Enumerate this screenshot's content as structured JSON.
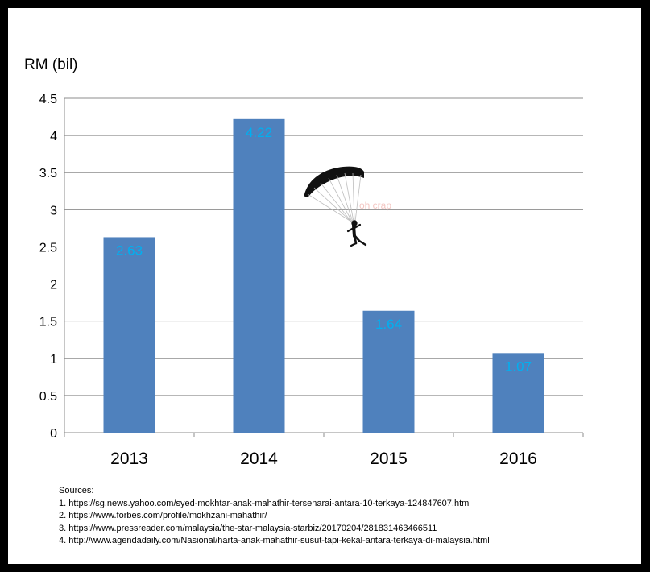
{
  "chart_data": {
    "type": "bar",
    "categories": [
      "2013",
      "2014",
      "2015",
      "2016"
    ],
    "values": [
      2.63,
      4.22,
      1.64,
      1.07
    ],
    "data_labels": [
      "2.63",
      "4.22",
      "1.64",
      "1.07"
    ],
    "title": "",
    "xlabel": "",
    "ylabel": "RM (bil)",
    "ylim": [
      0,
      4.5
    ],
    "yticks": [
      0,
      0.5,
      1,
      1.5,
      2,
      2.5,
      3,
      3.5,
      4,
      4.5
    ],
    "ytick_labels": [
      "0",
      "0.5",
      "1",
      "1.5",
      "2",
      "2.5",
      "3",
      "3.5",
      "4",
      "4.5"
    ],
    "grid": true,
    "bar_color": "#4F81BD",
    "label_color": "#00B0F0"
  },
  "annotation": {
    "text": "oh crap",
    "icon": "parachutist-icon",
    "color": "#F4C7C3"
  },
  "sources": {
    "heading": "Sources:",
    "items": [
      "1. https://sg.news.yahoo.com/syed-mokhtar-anak-mahathir-tersenarai-antara-10-terkaya-124847607.html",
      "2. https://www.forbes.com/profile/mokhzani-mahathir/",
      "3. https://www.pressreader.com/malaysia/the-star-malaysia-starbiz/20170204/281831463466511",
      "4. http://www.agendadaily.com/Nasional/harta-anak-mahathir-susut-tapi-kekal-antara-terkaya-di-malaysia.html"
    ]
  }
}
